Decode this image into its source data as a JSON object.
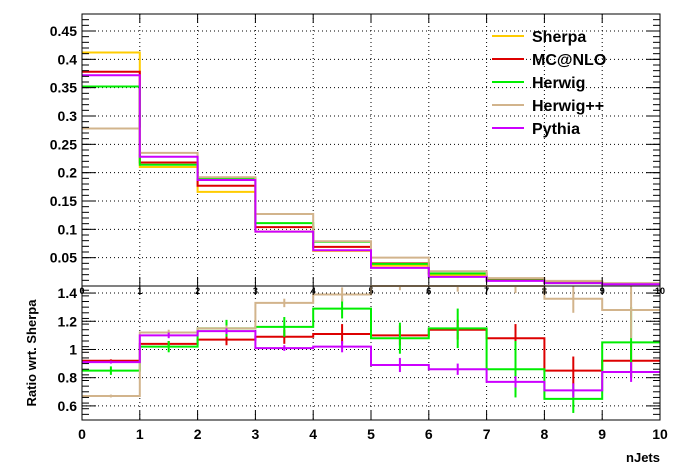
{
  "chart_data": [
    {
      "type": "step",
      "panel": "top",
      "title": "",
      "xlabel": "",
      "ylabel": "",
      "xlim": [
        0,
        10
      ],
      "ylim": [
        0,
        0.48
      ],
      "x_ticks": [
        0,
        1,
        2,
        3,
        4,
        5,
        6,
        7,
        8,
        9,
        10
      ],
      "y_ticks": [
        0.05,
        0.1,
        0.15,
        0.2,
        0.25,
        0.3,
        0.35,
        0.4,
        0.45
      ],
      "x_tick_labels": [
        "0",
        "1",
        "2",
        "3",
        "4",
        "5",
        "6",
        "7",
        "8",
        "9",
        "10"
      ],
      "y_tick_labels": [
        "0.05",
        "0.1",
        "0.15",
        "0.2",
        "0.25",
        "0.3",
        "0.35",
        "0.4",
        "0.45"
      ],
      "grid": true,
      "legend_position": "top-right",
      "series": [
        {
          "name": "Sherpa",
          "color": "#ffcc00",
          "values": [
            0.412,
            0.21,
            0.166,
            0.096,
            0.062,
            0.036,
            0.019,
            0.012,
            0.007,
            0.004
          ]
        },
        {
          "name": "MC@NLO",
          "color": "#dd0000",
          "values": [
            0.378,
            0.218,
            0.177,
            0.104,
            0.069,
            0.04,
            0.022,
            0.011,
            0.006,
            0.004
          ]
        },
        {
          "name": "Herwig",
          "color": "#00ee00",
          "values": [
            0.352,
            0.214,
            0.19,
            0.111,
            0.078,
            0.039,
            0.022,
            0.01,
            0.005,
            0.004
          ]
        },
        {
          "name": "Herwig++",
          "color": "#d2b48c",
          "values": [
            0.278,
            0.235,
            0.192,
            0.127,
            0.079,
            0.05,
            0.026,
            0.014,
            0.009,
            0.005
          ]
        },
        {
          "name": "Pythia",
          "color": "#cc00ff",
          "values": [
            0.372,
            0.228,
            0.187,
            0.096,
            0.063,
            0.032,
            0.016,
            0.009,
            0.005,
            0.003
          ]
        }
      ]
    },
    {
      "type": "step",
      "panel": "bottom",
      "title": "",
      "xlabel": "nJets",
      "ylabel": "Ratio wrt. Sherpa",
      "xlim": [
        0,
        10
      ],
      "ylim": [
        0.5,
        1.45
      ],
      "x_ticks": [
        0,
        1,
        2,
        3,
        4,
        5,
        6,
        7,
        8,
        9,
        10
      ],
      "y_ticks": [
        0.6,
        0.8,
        1.0,
        1.2,
        1.4
      ],
      "x_tick_labels": [
        "0",
        "1",
        "2",
        "3",
        "4",
        "5",
        "6",
        "7",
        "8",
        "9",
        "10"
      ],
      "y_tick_labels": [
        "0.6",
        "0.8",
        "1",
        "1.2",
        "1.4"
      ],
      "grid": true,
      "series": [
        {
          "name": "MC@NLO",
          "color": "#dd0000",
          "values": [
            0.92,
            1.04,
            1.07,
            1.09,
            1.11,
            1.1,
            1.14,
            1.08,
            0.85,
            0.92
          ],
          "errors": [
            0.01,
            0.02,
            0.04,
            0.05,
            0.07,
            0.07,
            0.07,
            0.1,
            0.1,
            0.12
          ]
        },
        {
          "name": "Herwig",
          "color": "#00ee00",
          "values": [
            0.85,
            1.02,
            1.15,
            1.16,
            1.29,
            1.08,
            1.15,
            0.86,
            0.65,
            1.05
          ],
          "errors": [
            0.03,
            0.04,
            0.06,
            0.07,
            0.07,
            0.11,
            0.14,
            0.2,
            0.1,
            0.25
          ]
        },
        {
          "name": "Herwig++",
          "color": "#d2b48c",
          "values": [
            0.67,
            1.12,
            1.15,
            1.33,
            1.39,
            1.45,
            1.45,
            1.45,
            1.36,
            1.28
          ],
          "errors": [
            0.01,
            0.02,
            0.02,
            0.03,
            0.05,
            0.03,
            0.04,
            0.05,
            0.1,
            0.2
          ]
        },
        {
          "name": "Pythia",
          "color": "#cc00ff",
          "values": [
            0.91,
            1.1,
            1.13,
            1.01,
            1.02,
            0.89,
            0.86,
            0.77,
            0.71,
            0.84
          ],
          "errors": [
            0.01,
            0.02,
            0.02,
            0.02,
            0.04,
            0.05,
            0.04,
            0.04,
            0.05,
            0.07
          ]
        }
      ]
    }
  ]
}
